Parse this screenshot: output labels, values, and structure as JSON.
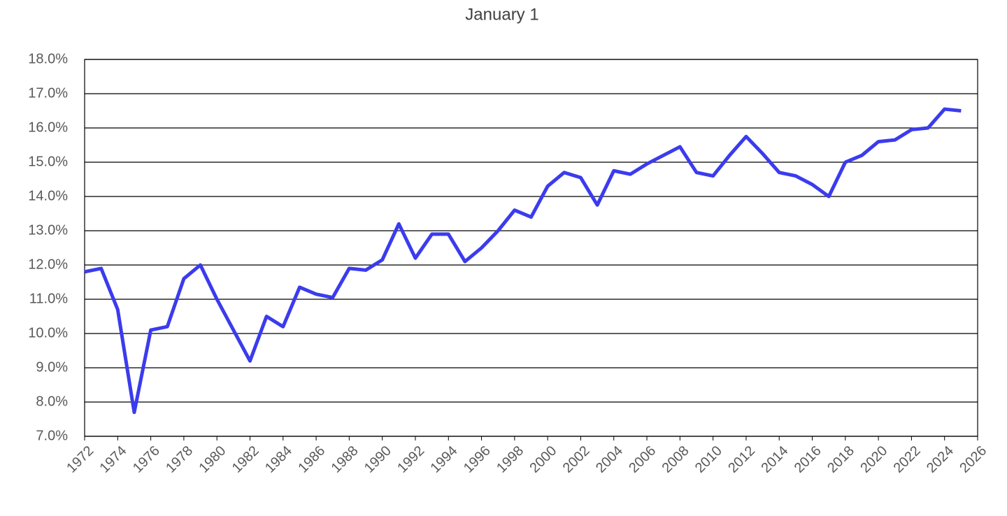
{
  "chart_data": {
    "type": "line",
    "title": "January 1",
    "x": [
      1972,
      1973,
      1974,
      1975,
      1976,
      1977,
      1978,
      1979,
      1980,
      1981,
      1982,
      1983,
      1984,
      1985,
      1986,
      1987,
      1988,
      1989,
      1990,
      1991,
      1992,
      1993,
      1994,
      1995,
      1996,
      1997,
      1998,
      1999,
      2000,
      2001,
      2002,
      2003,
      2004,
      2005,
      2006,
      2007,
      2008,
      2009,
      2010,
      2011,
      2012,
      2013,
      2014,
      2015,
      2016,
      2017,
      2018,
      2019,
      2020,
      2021,
      2022,
      2023,
      2024,
      2025
    ],
    "series": [
      {
        "color": "#3b3bee",
        "values": [
          11.8,
          11.9,
          10.7,
          7.7,
          10.1,
          10.2,
          11.6,
          12.0,
          11.0,
          10.1,
          9.2,
          10.5,
          10.2,
          11.35,
          11.15,
          11.05,
          11.9,
          11.85,
          12.15,
          13.2,
          12.2,
          12.9,
          12.9,
          12.1,
          12.5,
          13.0,
          13.6,
          13.4,
          14.3,
          14.7,
          14.55,
          13.75,
          14.75,
          14.65,
          14.95,
          15.2,
          15.45,
          14.7,
          14.6,
          15.2,
          15.75,
          15.25,
          14.7,
          14.6,
          14.35,
          14.0,
          15.0,
          15.2,
          15.6,
          15.65,
          15.95,
          16.0,
          16.55,
          16.5
        ]
      }
    ],
    "xlim": [
      1972,
      2026
    ],
    "xticks": [
      1972,
      1974,
      1976,
      1978,
      1980,
      1982,
      1984,
      1986,
      1988,
      1990,
      1992,
      1994,
      1996,
      1998,
      2000,
      2002,
      2004,
      2006,
      2008,
      2010,
      2012,
      2014,
      2016,
      2018,
      2020,
      2022,
      2024,
      2026
    ],
    "ylim": [
      7,
      18
    ],
    "yticks": [
      {
        "value": 7,
        "label": "7.0%"
      },
      {
        "value": 8,
        "label": "8.0%"
      },
      {
        "value": 9,
        "label": "9.0%"
      },
      {
        "value": 10,
        "label": "10.0%"
      },
      {
        "value": 11,
        "label": "11.0%"
      },
      {
        "value": 12,
        "label": "12.0%"
      },
      {
        "value": 13,
        "label": "13.0%"
      },
      {
        "value": 14,
        "label": "14.0%"
      },
      {
        "value": 15,
        "label": "15.0%"
      },
      {
        "value": 16,
        "label": "16.0%"
      },
      {
        "value": 17,
        "label": "17.0%"
      },
      {
        "value": 18,
        "label": "18.0%"
      }
    ],
    "grid": true
  }
}
